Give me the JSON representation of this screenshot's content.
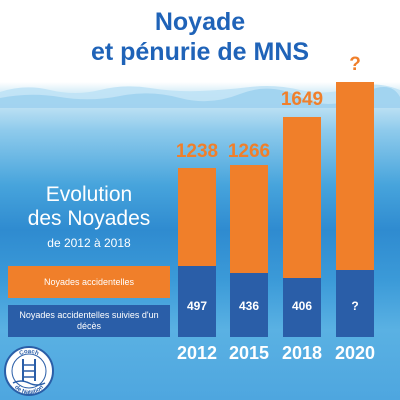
{
  "title_line1": "Noyade",
  "title_line2": "et pénurie de MNS",
  "subtitle_line1": "Evolution",
  "subtitle_line2": "des Noyades",
  "subtitle_line3": "de 2012 à 2018",
  "logo_text_top": "Coach",
  "logo_text_bottom": "de Natation",
  "colors": {
    "title": "#1f63b8",
    "orange": "#f07f2a",
    "blue": "#2a5ea8",
    "white": "#ffffff"
  },
  "chart_data": {
    "type": "bar",
    "stacked": true,
    "categories": [
      "2012",
      "2015",
      "2018",
      "2020"
    ],
    "series": [
      {
        "name": "Noyades accidentelles",
        "color": "#f07f2a",
        "values": [
          1238,
          1266,
          1649,
          null
        ],
        "labels": [
          "1238",
          "1266",
          "1649",
          "?"
        ]
      },
      {
        "name": "Noyades accidentelles suivies d'un décès",
        "color": "#2a5ea8",
        "values": [
          497,
          436,
          406,
          null
        ],
        "labels": [
          "497",
          "436",
          "406",
          "?"
        ]
      }
    ],
    "grid": false,
    "legend_position": "left"
  }
}
